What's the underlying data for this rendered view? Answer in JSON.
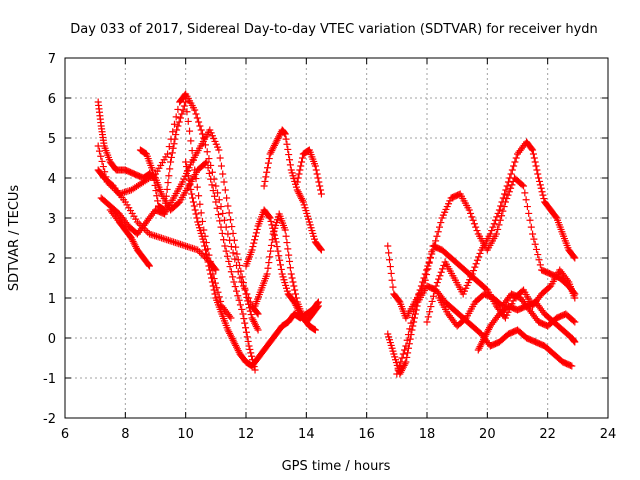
{
  "chart_data": {
    "type": "scatter",
    "title": "Day 033 of 2017, Sidereal Day-to-day VTEC variation (SDTVAR) for receiver hydn",
    "xlabel": "GPS time / hours",
    "ylabel": "SDTVAR / TECUs",
    "xlim": [
      6,
      24
    ],
    "ylim": [
      -2,
      7
    ],
    "xticks": [
      6,
      8,
      10,
      12,
      14,
      16,
      18,
      20,
      22,
      24
    ],
    "yticks": [
      -2,
      -1,
      0,
      1,
      2,
      3,
      4,
      5,
      6,
      7
    ],
    "grid": true,
    "marker": "+",
    "color": "#ff0000",
    "series": [
      {
        "x": [
          7.1,
          7.4,
          7.8,
          8.2,
          8.6,
          9.0,
          9.4,
          9.8,
          10.0,
          10.3,
          10.6,
          11.0,
          11.4,
          11.8,
          12.2,
          12.4
        ],
        "y": [
          4.8,
          3.9,
          3.6,
          3.7,
          3.9,
          4.1,
          4.6,
          5.9,
          6.1,
          5.7,
          5.0,
          3.8,
          2.6,
          1.5,
          0.8,
          0.6
        ]
      },
      {
        "x": [
          7.1,
          7.3,
          7.6,
          8.0,
          8.4,
          8.8,
          9.2,
          9.6,
          10.0,
          10.4,
          10.8,
          11.0
        ],
        "y": [
          4.2,
          4.0,
          3.8,
          3.4,
          2.9,
          2.6,
          2.5,
          2.4,
          2.3,
          2.2,
          1.9,
          1.7
        ]
      },
      {
        "x": [
          7.2,
          7.5,
          7.8,
          8.1,
          8.4,
          8.7,
          9.0,
          9.3,
          9.6,
          9.9,
          10.2,
          10.5,
          10.8,
          11.1,
          11.4,
          11.7,
          12.0,
          12.2,
          12.4
        ],
        "y": [
          3.5,
          3.3,
          3.1,
          2.8,
          2.6,
          2.9,
          3.2,
          3.1,
          3.5,
          3.9,
          4.4,
          4.8,
          5.2,
          4.7,
          3.3,
          2.1,
          1.1,
          0.5,
          0.2
        ]
      },
      {
        "x": [
          7.5,
          7.8,
          8.0,
          8.2,
          8.4,
          8.6,
          8.8
        ],
        "y": [
          3.2,
          2.9,
          2.7,
          2.5,
          2.2,
          2.0,
          1.8
        ]
      },
      {
        "x": [
          7.1,
          7.2,
          7.3,
          7.5,
          7.7,
          8.0,
          8.3,
          8.6,
          8.8,
          9.0,
          9.2,
          9.5,
          9.8,
          10.1,
          10.4,
          10.7,
          11.0,
          11.3,
          11.6,
          11.9,
          12.1,
          12.3
        ],
        "y": [
          5.9,
          5.3,
          4.8,
          4.4,
          4.2,
          4.2,
          4.1,
          4.0,
          4.1,
          4.0,
          3.6,
          3.2,
          3.4,
          3.8,
          4.2,
          4.4,
          3.4,
          2.3,
          1.4,
          0.6,
          -0.2,
          -0.8
        ]
      },
      {
        "x": [
          8.5,
          8.7,
          8.9,
          9.1,
          9.3,
          9.5,
          9.7,
          10.0,
          10.3,
          10.6,
          10.9,
          11.2,
          11.5
        ],
        "y": [
          4.7,
          4.6,
          4.2,
          3.3,
          3.2,
          4.4,
          5.2,
          5.9,
          4.2,
          2.7,
          1.6,
          0.8,
          0.5
        ]
      },
      {
        "x": [
          10.0,
          10.2,
          10.4,
          10.6,
          10.8,
          11.0,
          11.2,
          11.4,
          11.6,
          11.8,
          12.0,
          12.2,
          12.4,
          12.6,
          12.8,
          13.0,
          13.2,
          13.4,
          13.6,
          13.8,
          14.0,
          14.2,
          14.4
        ],
        "y": [
          4.4,
          3.6,
          2.9,
          2.4,
          1.7,
          1.0,
          0.6,
          0.2,
          -0.1,
          -0.4,
          -0.6,
          -0.7,
          -0.5,
          -0.3,
          -0.1,
          0.1,
          0.3,
          0.4,
          0.6,
          0.5,
          0.6,
          0.7,
          0.9
        ]
      },
      {
        "x": [
          12.0,
          12.2,
          12.4,
          12.6,
          12.8,
          13.0,
          13.2,
          13.4,
          13.6,
          13.8,
          14.0,
          14.2,
          14.4
        ],
        "y": [
          1.8,
          2.2,
          2.8,
          3.2,
          3.0,
          2.4,
          1.6,
          1.1,
          0.9,
          0.6,
          0.4,
          0.6,
          0.8
        ]
      },
      {
        "x": [
          12.6,
          12.8,
          13.0,
          13.2,
          13.3,
          13.5,
          13.7,
          13.9,
          14.1,
          14.3,
          14.5
        ],
        "y": [
          3.8,
          4.6,
          4.9,
          5.2,
          5.1,
          4.2,
          3.7,
          3.4,
          2.9,
          2.4,
          2.2
        ]
      },
      {
        "x": [
          12.3,
          12.5,
          12.7,
          12.9,
          13.1,
          13.3,
          13.5,
          13.7,
          13.9,
          14.1,
          14.3
        ],
        "y": [
          0.8,
          1.2,
          1.6,
          2.6,
          3.1,
          2.7,
          1.6,
          0.9,
          0.5,
          0.3,
          0.2
        ]
      },
      {
        "x": [
          13.7,
          13.9,
          14.1,
          14.3,
          14.5
        ],
        "y": [
          3.9,
          4.6,
          4.7,
          4.3,
          3.6
        ]
      },
      {
        "x": [
          16.7,
          16.9,
          17.1,
          17.3,
          17.5,
          17.7,
          18.0,
          18.3,
          18.6,
          18.9,
          19.2,
          19.5,
          19.8,
          20.1,
          20.4,
          20.7,
          21.0,
          21.3,
          21.6,
          21.9,
          22.2,
          22.5,
          22.8
        ],
        "y": [
          0.1,
          -0.4,
          -0.9,
          -0.6,
          0.2,
          0.9,
          1.3,
          1.2,
          0.9,
          0.7,
          0.5,
          0.3,
          0.1,
          -0.2,
          -0.1,
          0.1,
          0.2,
          0.0,
          -0.1,
          -0.2,
          -0.4,
          -0.6,
          -0.7
        ]
      },
      {
        "x": [
          16.7,
          16.9,
          17.1,
          17.3,
          17.6,
          17.9,
          18.2,
          18.5,
          18.8,
          19.1,
          19.4,
          19.7,
          20.0,
          20.3,
          20.6,
          20.9,
          21.2,
          21.5,
          21.8,
          22.1,
          22.4,
          22.7,
          22.9
        ],
        "y": [
          2.3,
          1.1,
          0.9,
          0.5,
          0.9,
          1.3,
          2.3,
          2.2,
          2.0,
          1.8,
          1.6,
          1.4,
          1.2,
          0.8,
          0.5,
          1.0,
          1.2,
          0.8,
          1.1,
          1.3,
          1.7,
          1.4,
          1.0
        ]
      },
      {
        "x": [
          17.0,
          17.3,
          17.6,
          17.9,
          18.2,
          18.5,
          18.8,
          19.1,
          19.4,
          19.7,
          20.0,
          20.3,
          20.6,
          20.9,
          21.2,
          21.5,
          21.8,
          22.1,
          22.4,
          22.7,
          22.9
        ],
        "y": [
          -0.9,
          -0.2,
          0.8,
          1.5,
          2.2,
          3.0,
          3.5,
          3.6,
          3.2,
          2.6,
          2.2,
          2.6,
          3.4,
          4.0,
          3.8,
          2.6,
          1.7,
          1.6,
          1.5,
          1.3,
          1.1
        ]
      },
      {
        "x": [
          18.0,
          18.3,
          18.6,
          18.9,
          19.2,
          19.5,
          19.8,
          20.1,
          20.4,
          20.7,
          21.0,
          21.3,
          21.5,
          21.7,
          21.9,
          22.1,
          22.3,
          22.5,
          22.7,
          22.9
        ],
        "y": [
          0.4,
          1.3,
          1.9,
          1.5,
          1.1,
          1.6,
          2.2,
          2.6,
          3.2,
          3.9,
          4.6,
          4.9,
          4.7,
          4.0,
          3.4,
          3.2,
          3.0,
          2.6,
          2.2,
          2.0
        ]
      },
      {
        "x": [
          19.7,
          19.9,
          20.1,
          20.4,
          20.7,
          21.0,
          21.3,
          21.6,
          21.9,
          22.2,
          22.5,
          22.8,
          22.9
        ],
        "y": [
          -0.3,
          0.0,
          0.3,
          0.6,
          0.8,
          0.7,
          0.8,
          0.9,
          0.6,
          0.4,
          0.2,
          0.0,
          -0.1
        ]
      },
      {
        "x": [
          18.4,
          18.7,
          19.0,
          19.3,
          19.6,
          19.9,
          20.2,
          20.5,
          20.8,
          21.1,
          21.4,
          21.7,
          22.0,
          22.3,
          22.6,
          22.9
        ],
        "y": [
          1.0,
          0.6,
          0.3,
          0.5,
          0.9,
          1.1,
          1.0,
          0.8,
          1.1,
          1.0,
          0.7,
          0.4,
          0.3,
          0.5,
          0.6,
          0.4
        ]
      }
    ]
  }
}
